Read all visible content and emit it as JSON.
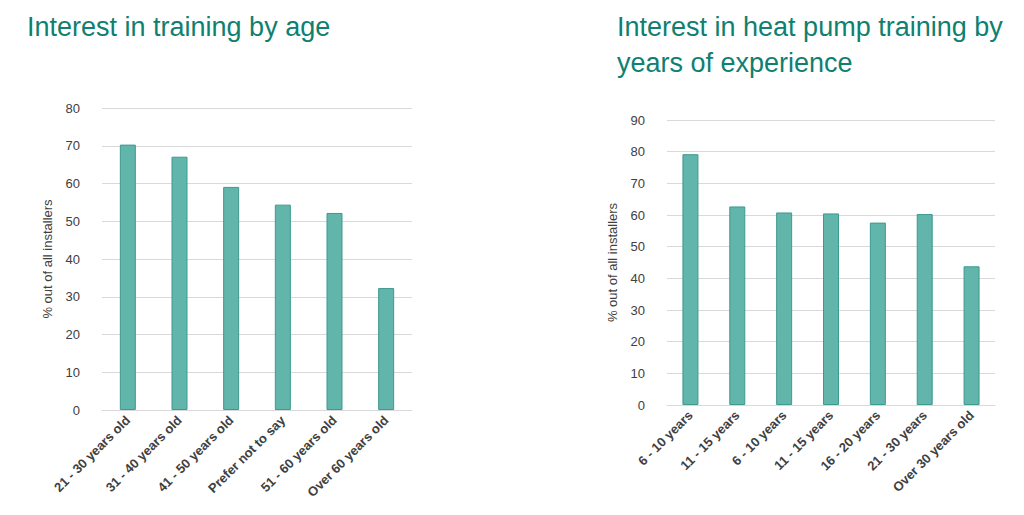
{
  "chart_data": [
    {
      "type": "bar",
      "title": "Interest in training by age",
      "y_label": "% out of all installers",
      "categories": [
        "21 - 30 years old",
        "31 - 40 years old",
        "41 - 50 years old",
        "Prefer not to say",
        "51 - 60 years old",
        "Over 60 years old"
      ],
      "values": [
        70.3,
        67.1,
        59.1,
        54.4,
        52.2,
        32.3
      ],
      "color": "#62b5ab",
      "ylim": [
        0,
        80
      ],
      "yticks": [
        0,
        10,
        20,
        30,
        40,
        50,
        60,
        70,
        80
      ],
      "grid": true
    },
    {
      "type": "bar",
      "title": "Interest in heat pump training by years of experience",
      "y_label": "% out of all installers",
      "categories": [
        "6 - 10 years",
        "11 - 15 years",
        "6 - 10 years",
        "11 - 15 years",
        "16 - 20 years",
        "21 - 30 years",
        "Over 30 years old"
      ],
      "values": [
        79.2,
        62.7,
        60.8,
        60.5,
        57.6,
        60.3,
        43.8
      ],
      "color": "#62b5ab",
      "ylim": [
        0,
        90
      ],
      "yticks": [
        0,
        10,
        20,
        30,
        40,
        50,
        60,
        70,
        80,
        90
      ],
      "grid": true
    }
  ]
}
